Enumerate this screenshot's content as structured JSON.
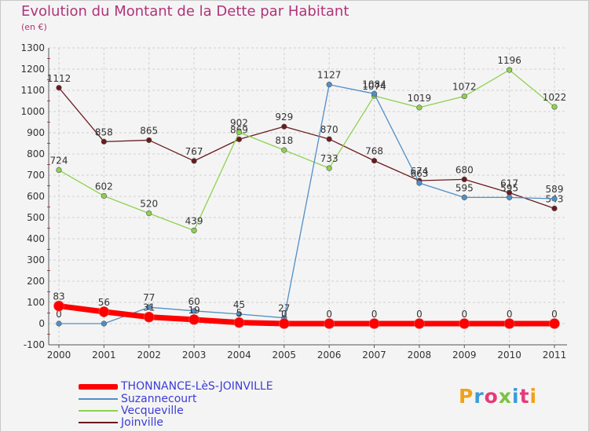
{
  "title": "Evolution du Montant de la Dette par Habitant",
  "unit": "(en €)",
  "logo": "Proxiti",
  "chart_data": {
    "type": "line",
    "x": [
      "2000",
      "2001",
      "2002",
      "2003",
      "2004",
      "2005",
      "2006",
      "2007",
      "2008",
      "2009",
      "2010",
      "2011"
    ],
    "ylim": [
      -100,
      1300
    ],
    "yticks": [
      -100,
      0,
      100,
      200,
      300,
      400,
      500,
      600,
      700,
      800,
      900,
      1000,
      1100,
      1200,
      1300
    ],
    "grid": true,
    "legend_position": "bottom",
    "series": [
      {
        "name": "Joinville",
        "color": "#6b1a1f",
        "width": 1.3,
        "values": [
          1112,
          858,
          865,
          767,
          869,
          929,
          870,
          768,
          674,
          680,
          617,
          543
        ],
        "labels": [
          "1112",
          "858",
          "865",
          "767",
          "869",
          "929",
          "870",
          "768",
          "674",
          "680",
          "617",
          "543"
        ]
      },
      {
        "name": "Vecqueville",
        "color": "#8fd14f",
        "width": 1.3,
        "values": [
          724,
          602,
          520,
          439,
          902,
          818,
          733,
          1074,
          1019,
          1072,
          1196,
          1022
        ],
        "labels": [
          "724",
          "602",
          "520",
          "439",
          "902",
          "818",
          "733",
          "1074",
          "1019",
          "1072",
          "1196",
          "1022"
        ]
      },
      {
        "name": "Suzannecourt",
        "color": "#4f8fc7",
        "width": 1.3,
        "values": [
          0,
          0,
          77,
          60,
          45,
          27,
          1127,
          1084,
          663,
          595,
          595,
          589
        ],
        "labels": [
          "0",
          "0",
          "77",
          "60",
          "45",
          "27",
          "1127",
          "1084",
          "663",
          "595",
          "595",
          "589"
        ]
      },
      {
        "name": "THONNANCE-LèS-JOINVILLE",
        "color": "#ff0000",
        "width": 7,
        "values": [
          83,
          56,
          31,
          19,
          5,
          0,
          0,
          0,
          0,
          0,
          0,
          0
        ],
        "labels": [
          "83",
          "56",
          "31",
          "19",
          "5",
          "0",
          "0",
          "0",
          "0",
          "0",
          "0",
          "0"
        ]
      }
    ]
  },
  "legend": [
    {
      "label": "THONNANCE-LèS-JOINVILLE",
      "color": "#ff0000"
    },
    {
      "label": "Suzannecourt",
      "color": "#4f8fc7"
    },
    {
      "label": "Vecqueville",
      "color": "#8fd14f"
    },
    {
      "label": "Joinville",
      "color": "#6b1a1f"
    }
  ],
  "logo_colors": [
    "#f0a21b",
    "#3a9bd9",
    "#e53a7a",
    "#7cc242",
    "#3a9bd9",
    "#e53a7a",
    "#f0a21b"
  ]
}
